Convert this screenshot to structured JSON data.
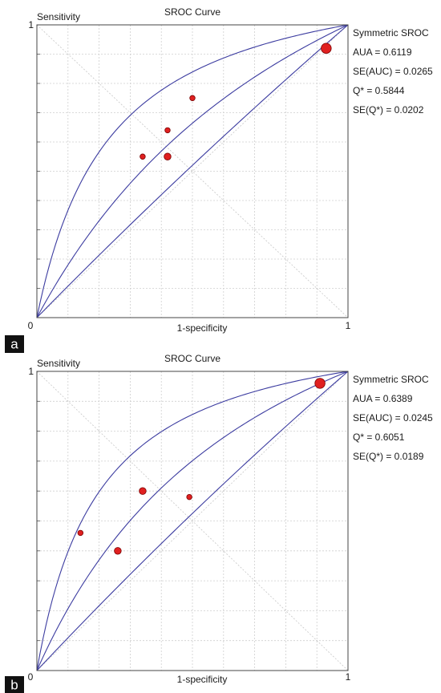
{
  "chart_data": [
    {
      "panel_label": "a",
      "type": "scatter",
      "title": "SROC Curve",
      "xlabel": "1-specificity",
      "ylabel": "Sensitivity",
      "xlim": [
        0,
        1
      ],
      "ylim": [
        0,
        1
      ],
      "tick_labels": {
        "origin": "0",
        "x_max": "1",
        "y_max": "1"
      },
      "grid": true,
      "legend_position": "right",
      "stats": [
        "Symmetric SROC",
        "AUA = 0.6119",
        "SE(AUC) = 0.0265",
        "Q* = 0.5844",
        "SE(Q*) = 0.0202"
      ],
      "sroc": {
        "auc": 0.6119,
        "q_star": 0.5844,
        "se_q_star": 0.0202
      },
      "points": [
        {
          "x": 0.93,
          "y": 0.92,
          "size": "large"
        },
        {
          "x": 0.5,
          "y": 0.75,
          "size": "small"
        },
        {
          "x": 0.42,
          "y": 0.64,
          "size": "small"
        },
        {
          "x": 0.34,
          "y": 0.55,
          "size": "small"
        },
        {
          "x": 0.42,
          "y": 0.55,
          "size": "medium"
        }
      ],
      "colors": {
        "curve": "#3c3ca0",
        "point": "#e02020",
        "grid": "#cfcfcf"
      }
    },
    {
      "panel_label": "b",
      "type": "scatter",
      "title": "SROC Curve",
      "xlabel": "1-specificity",
      "ylabel": "Sensitivity",
      "xlim": [
        0,
        1
      ],
      "ylim": [
        0,
        1
      ],
      "tick_labels": {
        "origin": "0",
        "x_max": "1",
        "y_max": "1"
      },
      "grid": true,
      "legend_position": "right",
      "stats": [
        "Symmetric SROC",
        "AUA = 0.6389",
        "SE(AUC) = 0.0245",
        "Q* = 0.6051",
        "SE(Q*) = 0.0189"
      ],
      "sroc": {
        "auc": 0.6389,
        "q_star": 0.6051,
        "se_q_star": 0.0189
      },
      "points": [
        {
          "x": 0.91,
          "y": 0.96,
          "size": "large"
        },
        {
          "x": 0.34,
          "y": 0.6,
          "size": "medium"
        },
        {
          "x": 0.49,
          "y": 0.58,
          "size": "small"
        },
        {
          "x": 0.14,
          "y": 0.46,
          "size": "small"
        },
        {
          "x": 0.26,
          "y": 0.4,
          "size": "medium"
        }
      ],
      "colors": {
        "curve": "#3c3ca0",
        "point": "#e02020",
        "grid": "#cfcfcf"
      }
    }
  ]
}
